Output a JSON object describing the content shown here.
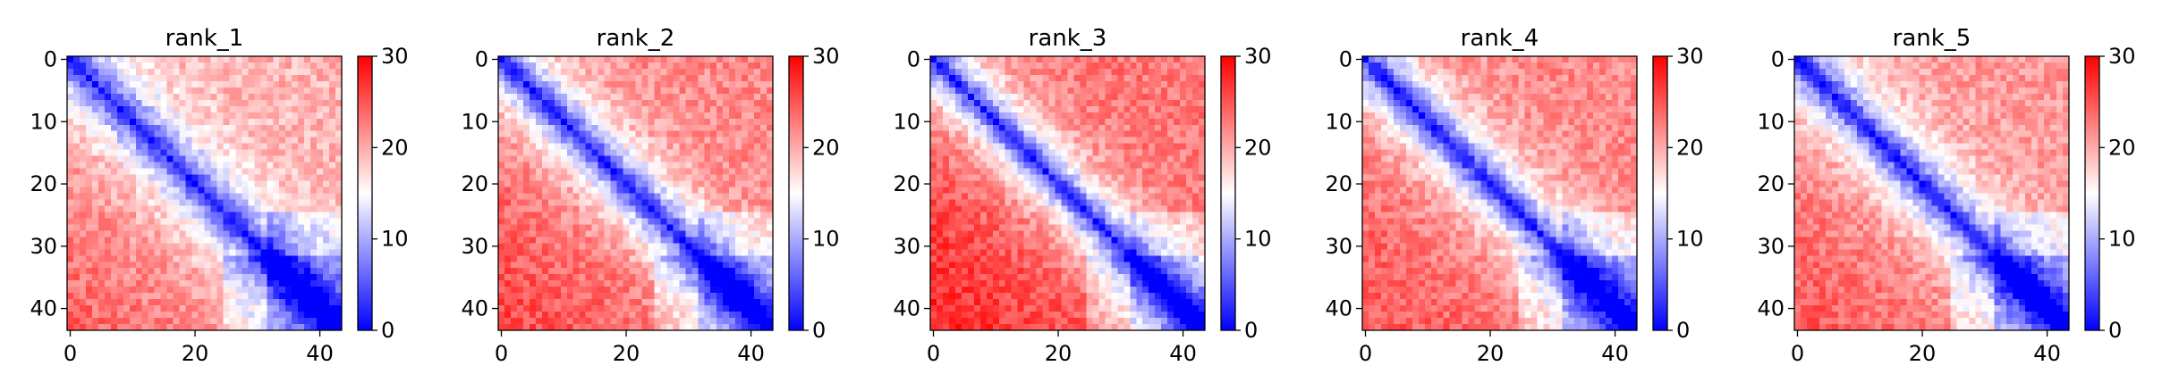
{
  "figure": {
    "colormap": {
      "name": "bwr",
      "low": "#0000ff",
      "mid": "#ffffff",
      "high": "#ff0000"
    },
    "axis_color": "#000000"
  },
  "chart_data": [
    {
      "type": "heatmap",
      "title": "rank_1",
      "matrix_size": 44,
      "x_ticks": [
        "0",
        "20",
        "40"
      ],
      "y_ticks": [
        "0",
        "10",
        "20",
        "30",
        "40"
      ],
      "colorbar": {
        "vmin": 0,
        "vmax": 30,
        "ticks": [
          "0",
          "10",
          "20",
          "30"
        ]
      },
      "pattern": {
        "diag_min": 0.7,
        "near_width": 5.5,
        "far_value": 19.5,
        "lower_bias": 2.5,
        "seed": 11
      }
    },
    {
      "type": "heatmap",
      "title": "rank_2",
      "matrix_size": 44,
      "x_ticks": [
        "0",
        "20",
        "40"
      ],
      "y_ticks": [
        "0",
        "10",
        "20",
        "30",
        "40"
      ],
      "colorbar": {
        "vmin": 0,
        "vmax": 30,
        "ticks": [
          "0",
          "10",
          "20",
          "30"
        ]
      },
      "pattern": {
        "diag_min": 0.7,
        "near_width": 5.5,
        "far_value": 22.0,
        "lower_bias": 2.0,
        "seed": 23
      }
    },
    {
      "type": "heatmap",
      "title": "rank_3",
      "matrix_size": 44,
      "x_ticks": [
        "0",
        "20",
        "40"
      ],
      "y_ticks": [
        "0",
        "10",
        "20",
        "30",
        "40"
      ],
      "colorbar": {
        "vmin": 0,
        "vmax": 30,
        "ticks": [
          "0",
          "10",
          "20",
          "30"
        ]
      },
      "pattern": {
        "diag_min": 0.7,
        "near_width": 5.0,
        "far_value": 23.0,
        "lower_bias": 2.5,
        "seed": 37
      }
    },
    {
      "type": "heatmap",
      "title": "rank_4",
      "matrix_size": 44,
      "x_ticks": [
        "0",
        "20",
        "40"
      ],
      "y_ticks": [
        "0",
        "10",
        "20",
        "30",
        "40"
      ],
      "colorbar": {
        "vmin": 0,
        "vmax": 30,
        "ticks": [
          "0",
          "10",
          "20",
          "30"
        ]
      },
      "pattern": {
        "diag_min": 0.7,
        "near_width": 5.5,
        "far_value": 22.0,
        "lower_bias": 1.5,
        "seed": 41
      }
    },
    {
      "type": "heatmap",
      "title": "rank_5",
      "matrix_size": 44,
      "x_ticks": [
        "0",
        "20",
        "40"
      ],
      "y_ticks": [
        "0",
        "10",
        "20",
        "30",
        "40"
      ],
      "colorbar": {
        "vmin": 0,
        "vmax": 30,
        "ticks": [
          "0",
          "10",
          "20",
          "30"
        ]
      },
      "pattern": {
        "diag_min": 0.7,
        "near_width": 5.5,
        "far_value": 21.0,
        "lower_bias": 2.0,
        "seed": 53
      }
    }
  ]
}
